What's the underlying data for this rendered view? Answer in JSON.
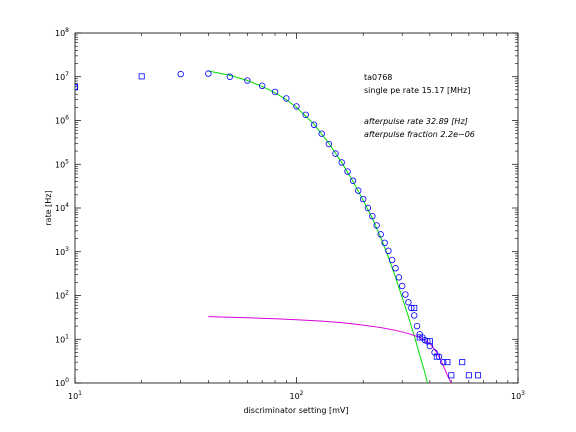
{
  "chart_data": {
    "type": "scatter",
    "xlabel": "discriminator setting [mV]",
    "ylabel": "rate [Hz]",
    "xscale": "log",
    "yscale": "log",
    "xlim": [
      10,
      1000
    ],
    "ylim": [
      1,
      100000000
    ],
    "x_tick_values": [
      10,
      100,
      1000
    ],
    "x_tick_labels": [
      [
        "10",
        "1"
      ],
      [
        "10",
        "2"
      ],
      [
        "10",
        "3"
      ]
    ],
    "y_tick_values": [
      1,
      10,
      100,
      1000,
      10000,
      100000,
      1000000,
      10000000,
      100000000
    ],
    "y_tick_labels": [
      [
        "10",
        "0"
      ],
      [
        "10",
        "1"
      ],
      [
        "10",
        "2"
      ],
      [
        "10",
        "3"
      ],
      [
        "10",
        "4"
      ],
      [
        "10",
        "5"
      ],
      [
        "10",
        "6"
      ],
      [
        "10",
        "7"
      ],
      [
        "10",
        "8"
      ]
    ],
    "annotations": [
      {
        "text": "ta0768",
        "italic": false
      },
      {
        "text": "single pe rate 15.17 [MHz]",
        "italic": false
      },
      {
        "text": "afterpulse rate 32.89 [Hz]",
        "italic": true
      },
      {
        "text": "afterpulse fraction 2.2e−06",
        "italic": true
      }
    ],
    "series": [
      {
        "marker": "circle",
        "color": "#0000ff",
        "points": [
          [
            10,
            5800000
          ],
          [
            30,
            11500000
          ],
          [
            40,
            11800000
          ],
          [
            50,
            10000000
          ],
          [
            60,
            8200000
          ],
          [
            70,
            6200000
          ],
          [
            80,
            4500000
          ],
          [
            90,
            3200000
          ],
          [
            100,
            2100000
          ],
          [
            110,
            1350000
          ],
          [
            120,
            800000
          ],
          [
            130,
            500000
          ],
          [
            140,
            290000
          ],
          [
            150,
            175000
          ],
          [
            160,
            110000
          ],
          [
            170,
            68000
          ],
          [
            180,
            42000
          ],
          [
            190,
            25000
          ],
          [
            200,
            16000
          ],
          [
            210,
            10000
          ],
          [
            220,
            6500
          ],
          [
            230,
            4000
          ],
          [
            240,
            2500
          ],
          [
            250,
            1600
          ],
          [
            260,
            1050
          ],
          [
            270,
            650
          ],
          [
            280,
            420
          ],
          [
            290,
            260
          ],
          [
            300,
            165
          ],
          [
            310,
            105
          ],
          [
            320,
            70
          ],
          [
            330,
            52
          ],
          [
            340,
            35
          ],
          [
            350,
            20
          ],
          [
            360,
            13
          ],
          [
            370,
            11
          ],
          [
            380,
            9.5
          ],
          [
            390,
            9
          ],
          [
            400,
            7
          ],
          [
            420,
            5
          ],
          [
            440,
            4
          ],
          [
            460,
            3
          ]
        ]
      },
      {
        "marker": "square",
        "color": "#0000ff",
        "points": [
          [
            10,
            5800000
          ],
          [
            20,
            10200000
          ],
          [
            340,
            52
          ],
          [
            360,
            11
          ],
          [
            400,
            9
          ],
          [
            430,
            4
          ],
          [
            480,
            3
          ],
          [
            500,
            1.5
          ],
          [
            560,
            3
          ],
          [
            600,
            1.5
          ],
          [
            660,
            1.5
          ]
        ]
      },
      {
        "marker": "line",
        "color": "#00dd00",
        "points": [
          [
            40,
            13500000
          ],
          [
            50,
            10800000
          ],
          [
            60,
            8200000
          ],
          [
            70,
            6000000
          ],
          [
            80,
            4300000
          ],
          [
            90,
            3000000
          ],
          [
            100,
            2000000
          ],
          [
            120,
            820000
          ],
          [
            140,
            300000
          ],
          [
            160,
            110000
          ],
          [
            180,
            40000
          ],
          [
            200,
            15000
          ],
          [
            220,
            5800
          ],
          [
            240,
            2100
          ],
          [
            260,
            750
          ],
          [
            280,
            260
          ],
          [
            300,
            90
          ],
          [
            320,
            33
          ],
          [
            340,
            12
          ],
          [
            360,
            4.4
          ],
          [
            380,
            1.7
          ],
          [
            390,
            1
          ]
        ]
      },
      {
        "marker": "line",
        "color": "#dd00dd",
        "points": [
          [
            40,
            33
          ],
          [
            60,
            31
          ],
          [
            80,
            29.5
          ],
          [
            100,
            28
          ],
          [
            130,
            26
          ],
          [
            160,
            24
          ],
          [
            200,
            21
          ],
          [
            240,
            18.5
          ],
          [
            280,
            16
          ],
          [
            320,
            13.5
          ],
          [
            360,
            11
          ],
          [
            400,
            8
          ],
          [
            430,
            5
          ],
          [
            460,
            2.5
          ],
          [
            480,
            1.5
          ],
          [
            500,
            1
          ]
        ]
      }
    ]
  }
}
